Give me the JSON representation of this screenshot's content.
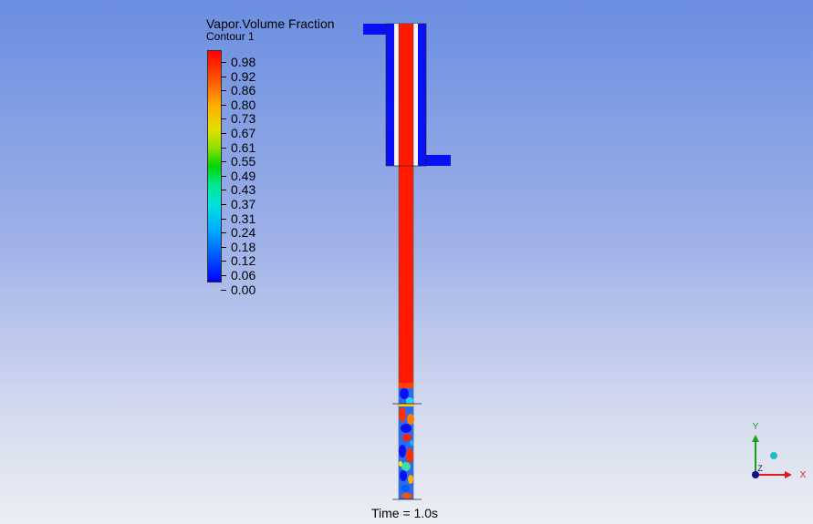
{
  "legend": {
    "title": "Vapor.Volume Fraction",
    "subtitle": "Contour 1",
    "ticks": [
      "0.98",
      "0.92",
      "0.86",
      "0.80",
      "0.73",
      "0.67",
      "0.61",
      "0.55",
      "0.49",
      "0.43",
      "0.37",
      "0.31",
      "0.24",
      "0.18",
      "0.12",
      "0.06",
      "0.00"
    ]
  },
  "footer": {
    "time": "Time = 1.0s"
  },
  "axes": {
    "x": "X",
    "y": "Y",
    "z": "Z"
  },
  "colors": {
    "vapor": "#ff1a00",
    "liquid": "#0a10f5",
    "x_axis": "#e01818",
    "y_axis": "#18a018",
    "z_axis": "#10108a"
  }
}
